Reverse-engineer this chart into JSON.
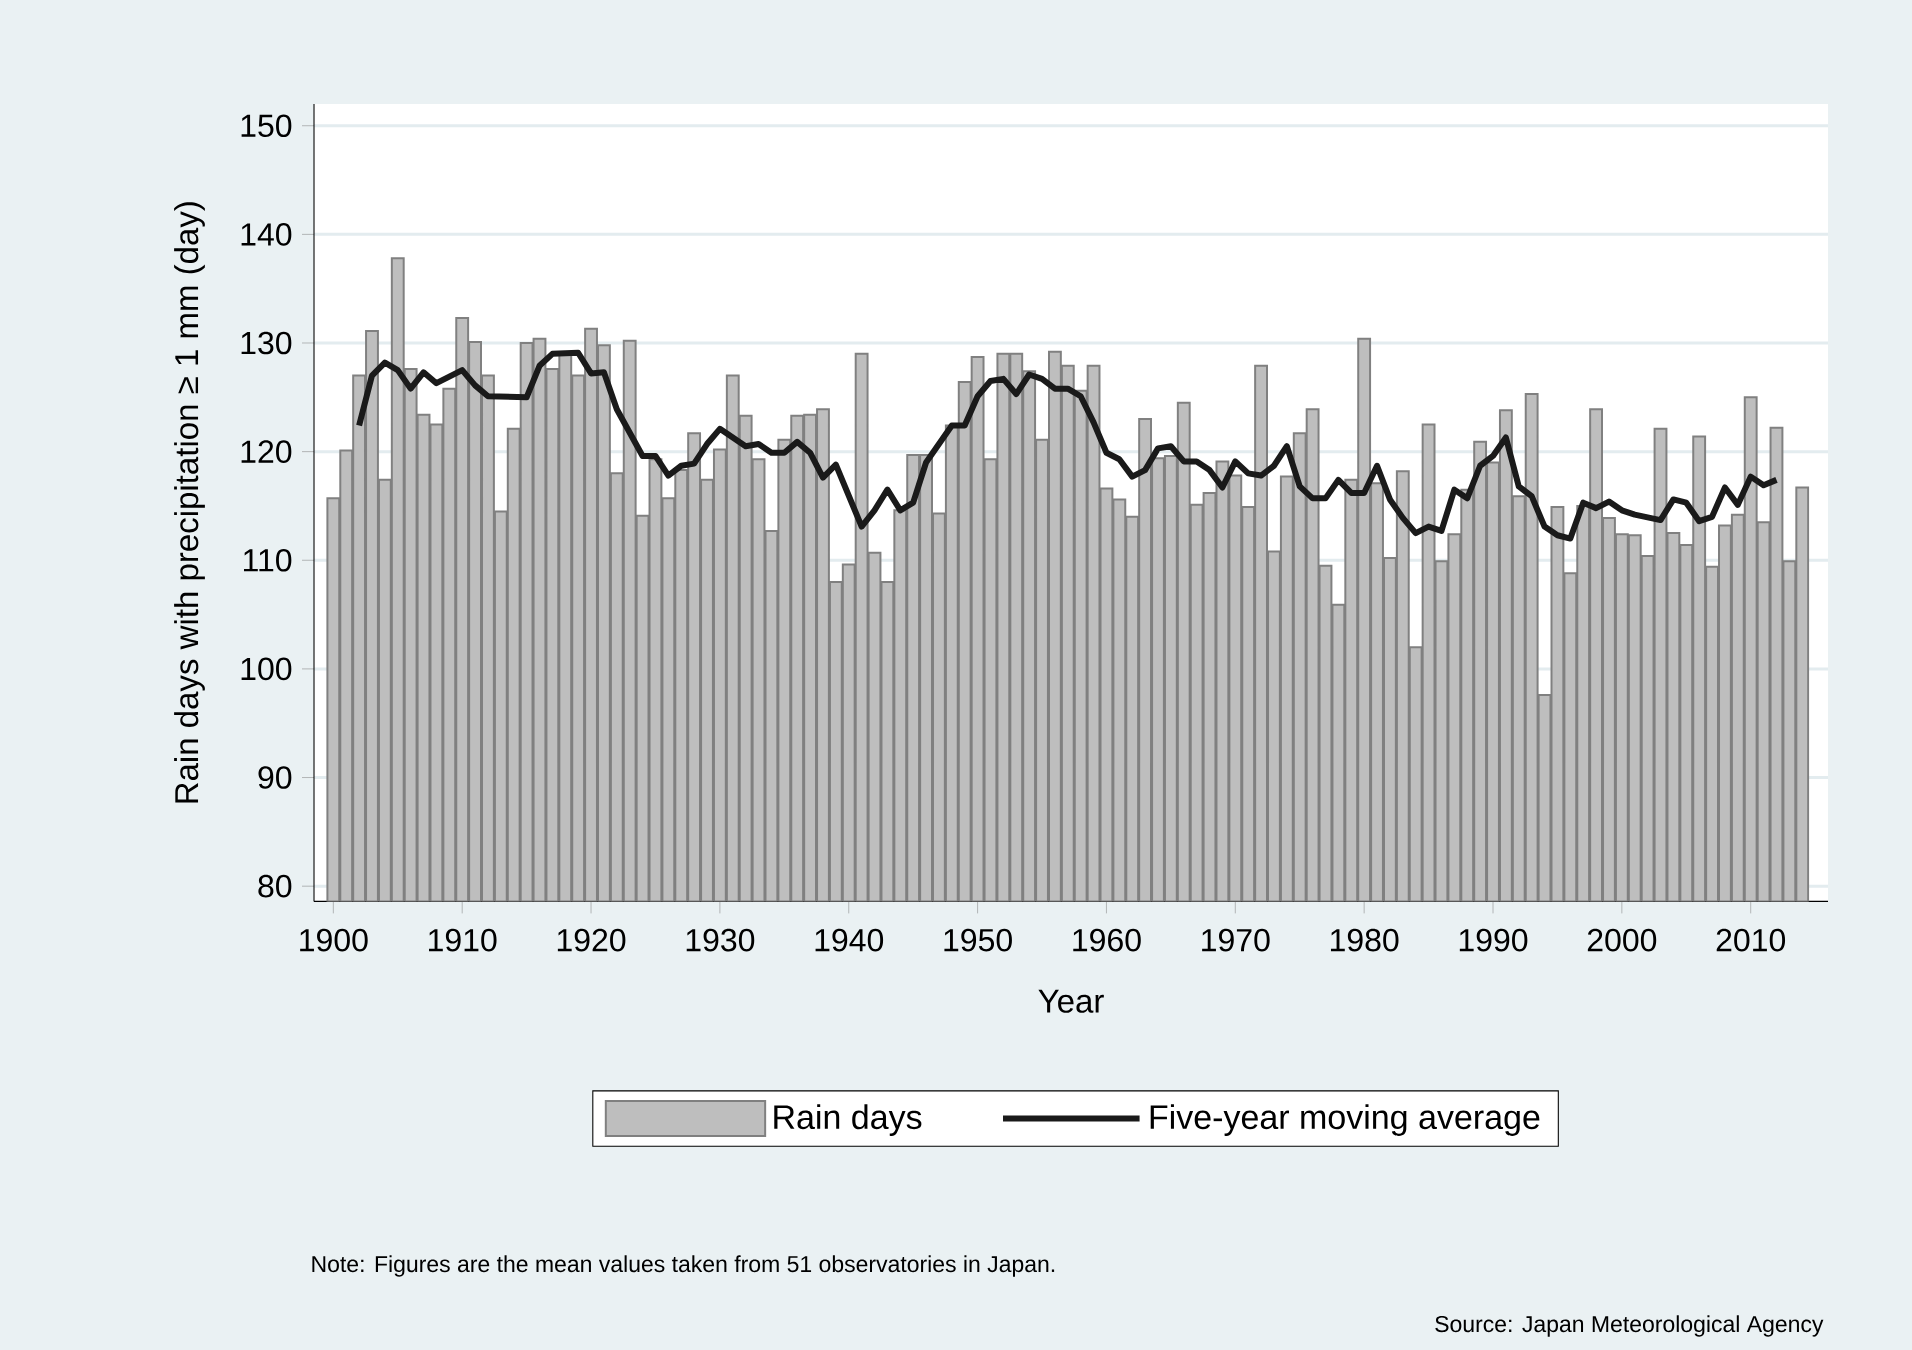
{
  "chart_data": {
    "type": "bar",
    "xlabel": "Year",
    "ylabel": "Rain days with precipitation ≥ 1 mm (day)",
    "annotations": [
      "Note: Figures are the mean values taken from 51 observatories in Japan.",
      "Source: Japan Meteorological Agency"
    ],
    "x": [
      1900,
      1901,
      1902,
      1903,
      1904,
      1905,
      1906,
      1907,
      1908,
      1909,
      1910,
      1911,
      1912,
      1913,
      1914,
      1915,
      1916,
      1917,
      1918,
      1919,
      1920,
      1921,
      1922,
      1923,
      1924,
      1925,
      1926,
      1927,
      1928,
      1929,
      1930,
      1931,
      1932,
      1933,
      1934,
      1935,
      1936,
      1937,
      1938,
      1939,
      1940,
      1941,
      1942,
      1943,
      1944,
      1945,
      1946,
      1947,
      1948,
      1949,
      1950,
      1951,
      1952,
      1953,
      1954,
      1955,
      1956,
      1957,
      1958,
      1959,
      1960,
      1961,
      1962,
      1963,
      1964,
      1965,
      1966,
      1967,
      1968,
      1969,
      1970,
      1971,
      1972,
      1973,
      1974,
      1975,
      1976,
      1977,
      1978,
      1979,
      1980,
      1981,
      1982,
      1983,
      1984,
      1985,
      1986,
      1987,
      1988,
      1989,
      1990,
      1991,
      1992,
      1993,
      1994,
      1995,
      1996,
      1997,
      1998,
      1999,
      2000,
      2001,
      2002,
      2003,
      2004,
      2005,
      2006,
      2007,
      2008,
      2009,
      2010,
      2011,
      2012,
      2013,
      2014
    ],
    "series": [
      {
        "name": "Rain days",
        "color": "#bebebe",
        "values": [
          115.7,
          120.1,
          127.0,
          131.1,
          117.4,
          137.8,
          127.6,
          123.4,
          122.5,
          125.8,
          132.3,
          130.1,
          127.0,
          114.5,
          122.1,
          130.0,
          130.4,
          127.6,
          128.9,
          127.0,
          131.3,
          129.8,
          118.0,
          130.2,
          114.1,
          119.3,
          115.7,
          118.3,
          121.7,
          117.4,
          120.2,
          127.0,
          123.3,
          119.3,
          112.7,
          121.1,
          123.3,
          123.4,
          123.9,
          108.0,
          109.6,
          129.0,
          110.7,
          108.0,
          114.6,
          119.7,
          119.7,
          114.3,
          122.4,
          126.4,
          128.7,
          119.3,
          129.0,
          129.0,
          127.4,
          121.1,
          129.2,
          127.9,
          125.6,
          127.9,
          116.6,
          115.6,
          114.0,
          123.0,
          119.4,
          119.6,
          124.5,
          115.1,
          116.2,
          119.1,
          117.8,
          114.9,
          127.9,
          110.8,
          117.7,
          121.7,
          123.9,
          109.5,
          105.9,
          117.4,
          130.4,
          117.1,
          110.2,
          118.2,
          102.0,
          122.5,
          109.9,
          112.4,
          116.5,
          120.9,
          119.0,
          123.8,
          115.9,
          125.3,
          97.6,
          114.9,
          108.8,
          115.0,
          123.9,
          113.9,
          112.4,
          112.3,
          110.4,
          122.1,
          112.5,
          111.4,
          121.4,
          109.4,
          113.2,
          114.2,
          125.0,
          113.5,
          122.2,
          109.9,
          116.7
        ]
      },
      {
        "name": "Five-year moving average",
        "type": "line",
        "color": "#1a1a1a",
        "x": [
          1902,
          1903,
          1904,
          1905,
          1906,
          1907,
          1908,
          1910,
          1911,
          1912,
          1915,
          1916,
          1917,
          1919,
          1920,
          1921,
          1922,
          1924,
          1925,
          1926,
          1927,
          1928,
          1929,
          1930,
          1932,
          1933,
          1934,
          1935,
          1936,
          1937,
          1938,
          1939,
          1941,
          1942,
          1943,
          1944,
          1945,
          1946,
          1948,
          1949,
          1950,
          1951,
          1952,
          1953,
          1954,
          1955,
          1956,
          1957,
          1958,
          1959,
          1960,
          1961,
          1962,
          1963,
          1964,
          1965,
          1966,
          1967,
          1968,
          1969,
          1970,
          1971,
          1972,
          1973,
          1974,
          1975,
          1976,
          1977,
          1978,
          1979,
          1980,
          1981,
          1982,
          1983,
          1984,
          1985,
          1986,
          1987,
          1988,
          1989,
          1990,
          1991,
          1992,
          1993,
          1994,
          1995,
          1996,
          1997,
          1998,
          1999,
          2000,
          2001,
          2003,
          2004,
          2005,
          2006,
          2007,
          2008,
          2009,
          2010,
          2011,
          2012
        ],
        "values": [
          122.4,
          127.0,
          128.2,
          127.5,
          125.8,
          127.3,
          126.3,
          127.5,
          126.1,
          125.1,
          125.0,
          127.9,
          129.0,
          129.1,
          127.2,
          127.3,
          123.9,
          119.6,
          119.6,
          117.8,
          118.7,
          118.9,
          120.7,
          122.1,
          120.5,
          120.7,
          119.9,
          119.9,
          120.9,
          119.9,
          117.6,
          118.8,
          113.1,
          114.6,
          116.5,
          114.6,
          115.3,
          119.0,
          122.4,
          122.4,
          125.1,
          126.5,
          126.7,
          125.3,
          127.1,
          126.7,
          125.8,
          125.8,
          125.1,
          122.7,
          119.9,
          119.3,
          117.7,
          118.3,
          120.3,
          120.5,
          119.1,
          119.1,
          118.3,
          116.7,
          119.1,
          118.0,
          117.8,
          118.7,
          120.5,
          116.8,
          115.7,
          115.7,
          117.4,
          116.2,
          116.2,
          118.7,
          115.6,
          113.9,
          112.5,
          113.1,
          112.7,
          116.5,
          115.7,
          118.7,
          119.6,
          121.3,
          116.8,
          115.9,
          113.1,
          112.3,
          112.0,
          115.3,
          114.8,
          115.4,
          114.6,
          114.2,
          113.7,
          115.6,
          115.3,
          113.6,
          114.0,
          116.7,
          115.1,
          117.7,
          116.9,
          117.4
        ]
      }
    ],
    "xlim": [
      1898.5,
      2016
    ],
    "ylim": [
      78.6,
      152
    ],
    "xticks": [
      1900,
      1910,
      1920,
      1930,
      1940,
      1950,
      1960,
      1970,
      1980,
      1990,
      2000,
      2010
    ],
    "yticks": [
      80,
      90,
      100,
      110,
      120,
      130,
      140,
      150
    ],
    "grid": "y",
    "legend": "bottom"
  }
}
